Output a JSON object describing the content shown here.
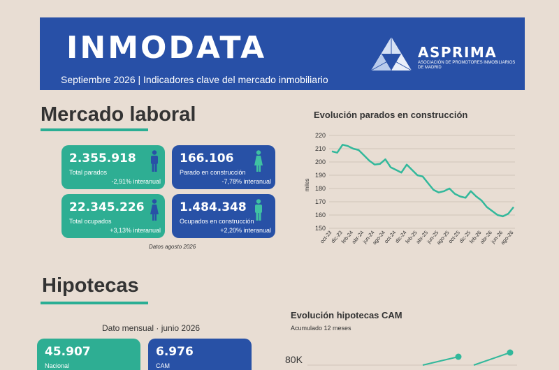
{
  "header": {
    "brand": "INMODATA",
    "subtitle": "Septiembre 2026 | Indicadores clave del mercado inmobiliario",
    "logo_name": "ASPRIMA",
    "logo_sub": "Asociación de Promotores Inmobiliarios de Madrid"
  },
  "mercado_laboral": {
    "title": "Mercado laboral",
    "cards": [
      {
        "value": "2.355.918",
        "label": "Total parados",
        "change": "-2,91% interanual",
        "icon": "male-figure-icon"
      },
      {
        "value": "166.106",
        "label": "Parado en construcción",
        "change": "-7,78% interanual",
        "icon": "female-figure-icon"
      },
      {
        "value": "22.345.226",
        "label": "Total ocupados",
        "change": "+3,13% interanual",
        "icon": "female-figure-icon"
      },
      {
        "value": "1.484.348",
        "label": "Ocupados en construcción",
        "change": "+2,20% interanual",
        "icon": "male-figure-icon"
      }
    ],
    "note": "Datos agosto 2026"
  },
  "colors": {
    "teal": "#2eae93",
    "blue": "#2851a6",
    "line": "#32b89b",
    "background": "#e8ddd3"
  },
  "chart_data": [
    {
      "type": "line",
      "title": "Evolución parados en construcción",
      "xlabel": "",
      "ylabel": "miles",
      "ylim": [
        150,
        220
      ],
      "yticks": [
        150,
        160,
        170,
        180,
        190,
        200,
        210,
        220
      ],
      "grid": true,
      "tick_labels": [
        "oct-23",
        "dic-23",
        "feb-24",
        "abr-24",
        "jun-24",
        "ago-24",
        "oct-24",
        "dic-24",
        "feb-25",
        "abr-25",
        "jun-25",
        "ago-25",
        "oct-25",
        "dic-25",
        "feb-26",
        "abr-26",
        "jun-26",
        "ago-26"
      ],
      "x": [
        "oct-23",
        "nov-23",
        "dic-23",
        "ene-24",
        "feb-24",
        "mar-24",
        "abr-24",
        "may-24",
        "jun-24",
        "jul-24",
        "ago-24",
        "sep-24",
        "oct-24",
        "nov-24",
        "dic-24",
        "ene-25",
        "feb-25",
        "mar-25",
        "abr-25",
        "may-25",
        "jun-25",
        "jul-25",
        "ago-25",
        "sep-25",
        "oct-25",
        "nov-25",
        "dic-25",
        "ene-26",
        "feb-26",
        "mar-26",
        "abr-26",
        "may-26",
        "jun-26",
        "jul-26",
        "ago-26"
      ],
      "values": [
        208,
        207,
        213,
        212,
        210,
        209,
        205,
        201,
        198,
        198.5,
        202,
        196,
        194,
        192,
        198,
        194,
        190,
        189,
        184,
        179,
        177,
        178,
        180,
        176,
        174,
        173,
        178,
        174,
        171,
        166,
        163,
        160,
        159,
        161,
        166
      ]
    },
    {
      "type": "line",
      "title": "Evolución hipotecas CAM",
      "subtitle": "Acumulado 12 meses",
      "ylabel": "",
      "ytick_labels": [
        "80K"
      ],
      "series": [
        {
          "values": [
            80,
            82
          ]
        },
        {
          "values": [
            80,
            83
          ]
        }
      ]
    }
  ],
  "hipotecas": {
    "title": "Hipotecas",
    "dato_mensual": "Dato mensual · junio 2026",
    "cards": [
      {
        "value": "45.907",
        "label": "Nacional"
      },
      {
        "value": "6.976",
        "label": "CAM"
      }
    ]
  }
}
